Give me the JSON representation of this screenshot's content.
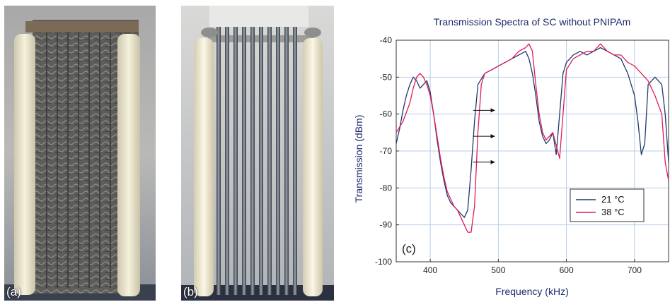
{
  "panels": {
    "a": {
      "label": "(a)"
    },
    "b": {
      "label": "(b)"
    }
  },
  "chart_data": {
    "type": "line",
    "title": "Transmission Spectra of SC without PNIPAm",
    "xlabel": "Frequency (kHz)",
    "ylabel": "Transmission (dBm)",
    "panel_label": "(c)",
    "xlim": [
      350,
      750
    ],
    "ylim": [
      -100,
      -40
    ],
    "xticks": [
      400,
      500,
      600,
      700
    ],
    "yticks": [
      -40,
      -50,
      -60,
      -70,
      -80,
      -90,
      -100
    ],
    "grid": true,
    "legend_position": "bottom-right",
    "series": [
      {
        "name": "21 °C",
        "color": "#1f3a6e",
        "x": [
          350,
          355,
          360,
          365,
          370,
          375,
          380,
          385,
          390,
          395,
          400,
          405,
          410,
          415,
          420,
          425,
          430,
          435,
          440,
          445,
          450,
          455,
          460,
          465,
          470,
          480,
          490,
          500,
          510,
          520,
          530,
          540,
          545,
          550,
          555,
          560,
          565,
          570,
          575,
          580,
          585,
          590,
          595,
          600,
          610,
          620,
          630,
          640,
          650,
          660,
          670,
          680,
          690,
          700,
          705,
          710,
          715,
          720,
          730,
          740,
          745,
          750
        ],
        "y": [
          -68,
          -64,
          -59,
          -55,
          -52,
          -50,
          -51,
          -53,
          -52,
          -51,
          -54,
          -60,
          -67,
          -73,
          -78,
          -82,
          -84,
          -85,
          -86,
          -87,
          -88,
          -86,
          -75,
          -62,
          -52,
          -49,
          -48,
          -47,
          -46,
          -45,
          -44,
          -43,
          -45,
          -49,
          -55,
          -62,
          -66,
          -68,
          -67,
          -65,
          -71,
          -60,
          -49,
          -46,
          -44,
          -43,
          -44,
          -43,
          -42,
          -43,
          -44,
          -45,
          -49,
          -55,
          -62,
          -71,
          -68,
          -52,
          -50,
          -52,
          -60,
          -73
        ]
      },
      {
        "name": "38 °C",
        "color": "#e01b5a",
        "x": [
          350,
          360,
          370,
          375,
          380,
          385,
          390,
          395,
          400,
          405,
          410,
          415,
          420,
          425,
          430,
          435,
          440,
          445,
          450,
          455,
          460,
          465,
          470,
          475,
          480,
          490,
          500,
          510,
          520,
          530,
          540,
          545,
          550,
          555,
          560,
          565,
          570,
          580,
          590,
          595,
          600,
          610,
          620,
          630,
          640,
          650,
          660,
          670,
          680,
          690,
          700,
          710,
          720,
          730,
          740,
          745,
          750
        ],
        "y": [
          -65,
          -62,
          -57,
          -53,
          -50,
          -49,
          -50,
          -52,
          -55,
          -60,
          -66,
          -72,
          -77,
          -81,
          -83,
          -85,
          -86,
          -88,
          -90,
          -92,
          -92,
          -85,
          -65,
          -52,
          -49,
          -48,
          -47,
          -46,
          -45,
          -43,
          -42,
          -41,
          -43,
          -52,
          -60,
          -65,
          -67,
          -65,
          -72,
          -60,
          -48,
          -45,
          -44,
          -43,
          -43,
          -41,
          -43,
          -44,
          -44,
          -46,
          -47,
          -49,
          -51,
          -55,
          -60,
          -73,
          -78
        ]
      }
    ]
  }
}
